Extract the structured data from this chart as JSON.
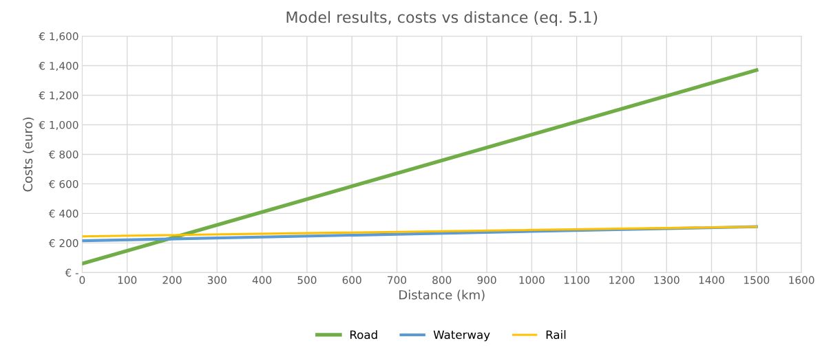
{
  "chart_data": {
    "type": "line",
    "title": "Model results, costs vs distance (eq. 5.1)",
    "xlabel": "Distance (km)",
    "ylabel": "Costs (euro)",
    "x": [
      0,
      1500
    ],
    "series": [
      {
        "name": "Road",
        "color": "#70ad47",
        "values": [
          60,
          1370
        ]
      },
      {
        "name": "Waterway",
        "color": "#5b9bd5",
        "values": [
          215,
          310
        ]
      },
      {
        "name": "Rail",
        "color": "#ffc000",
        "values": [
          245,
          310
        ]
      }
    ],
    "xlim": [
      0,
      1600
    ],
    "xticks": [
      0,
      100,
      200,
      300,
      400,
      500,
      600,
      700,
      800,
      900,
      1000,
      1100,
      1200,
      1300,
      1400,
      1500,
      1600
    ],
    "ylim": [
      0,
      1600
    ],
    "yticks": [
      {
        "value": 0,
        "label": "€ -"
      },
      {
        "value": 200,
        "label": "€ 200"
      },
      {
        "value": 400,
        "label": "€ 400"
      },
      {
        "value": 600,
        "label": "€ 600"
      },
      {
        "value": 800,
        "label": "€ 800"
      },
      {
        "value": 1000,
        "label": "€ 1,000"
      },
      {
        "value": 1200,
        "label": "€ 1,200"
      },
      {
        "value": 1400,
        "label": "€ 1,400"
      },
      {
        "value": 1600,
        "label": "€ 1,600"
      }
    ],
    "grid": true,
    "legend": "bottom",
    "marker": "none",
    "line_style": "solid"
  }
}
